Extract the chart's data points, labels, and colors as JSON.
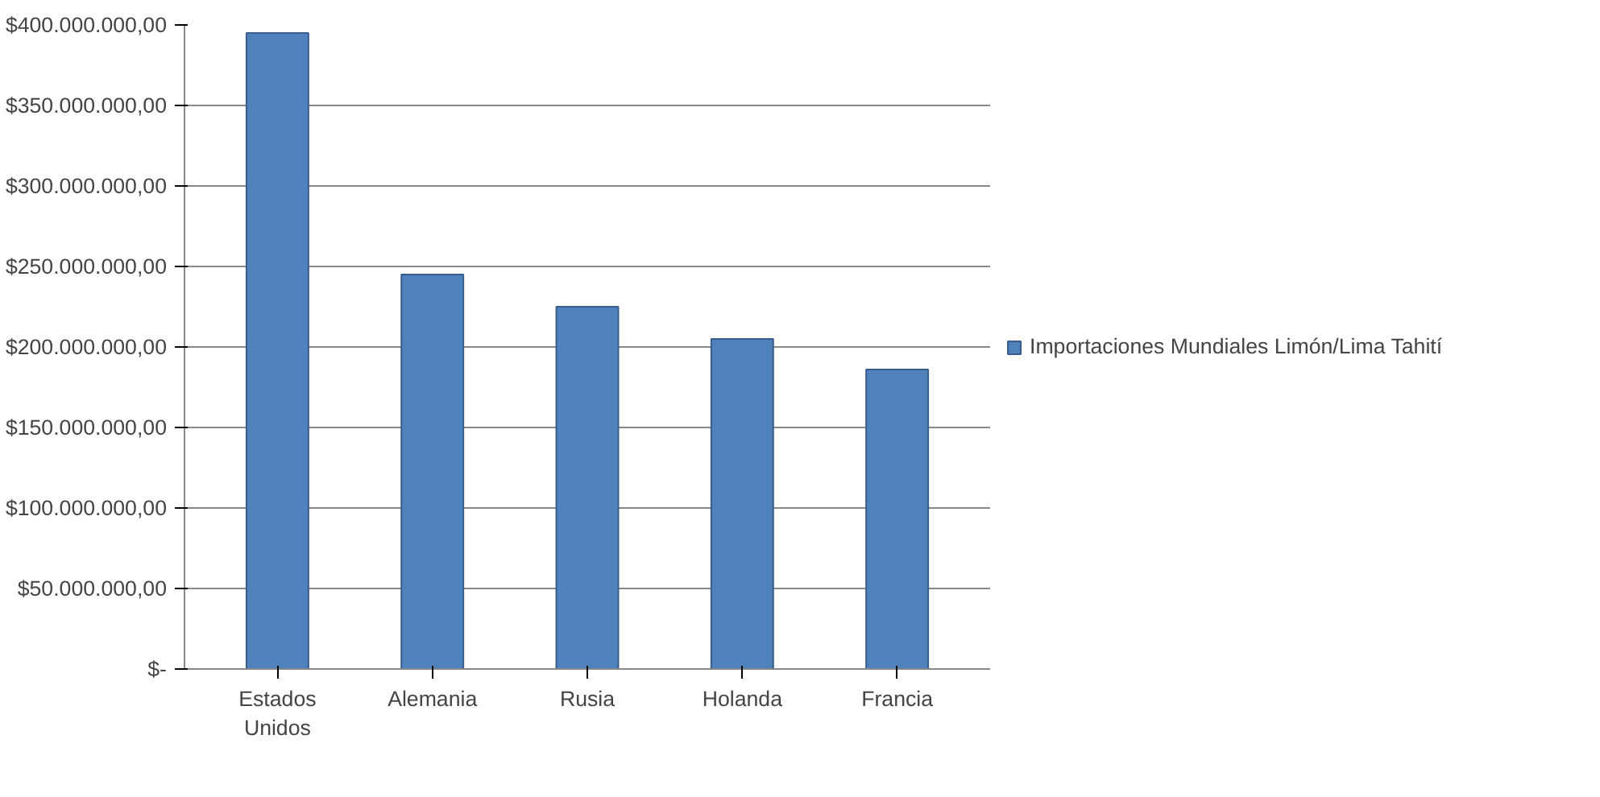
{
  "chart_data": {
    "type": "bar",
    "categories": [
      "Estados Unidos",
      "Alemania",
      "Rusia",
      "Holanda",
      "Francia"
    ],
    "series": [
      {
        "name": "Importaciones Mundiales Limón/Lima Tahití",
        "color": "#4f81bd",
        "values": [
          395000000,
          245000000,
          225000000,
          205000000,
          186000000
        ]
      }
    ],
    "ylim": [
      0,
      400000000
    ],
    "yticks": [
      {
        "value": 0,
        "label": "$-"
      },
      {
        "value": 50000000,
        "label": "$50.000.000,00"
      },
      {
        "value": 100000000,
        "label": "$100.000.000,00"
      },
      {
        "value": 150000000,
        "label": "$150.000.000,00"
      },
      {
        "value": 200000000,
        "label": "$200.000.000,00"
      },
      {
        "value": 250000000,
        "label": "$250.000.000,00"
      },
      {
        "value": 300000000,
        "label": "$300.000.000,00"
      },
      {
        "value": 350000000,
        "label": "$350.000.000,00"
      },
      {
        "value": 400000000,
        "label": "$400.000.000,00"
      }
    ],
    "grid": "y",
    "legend": "right"
  }
}
